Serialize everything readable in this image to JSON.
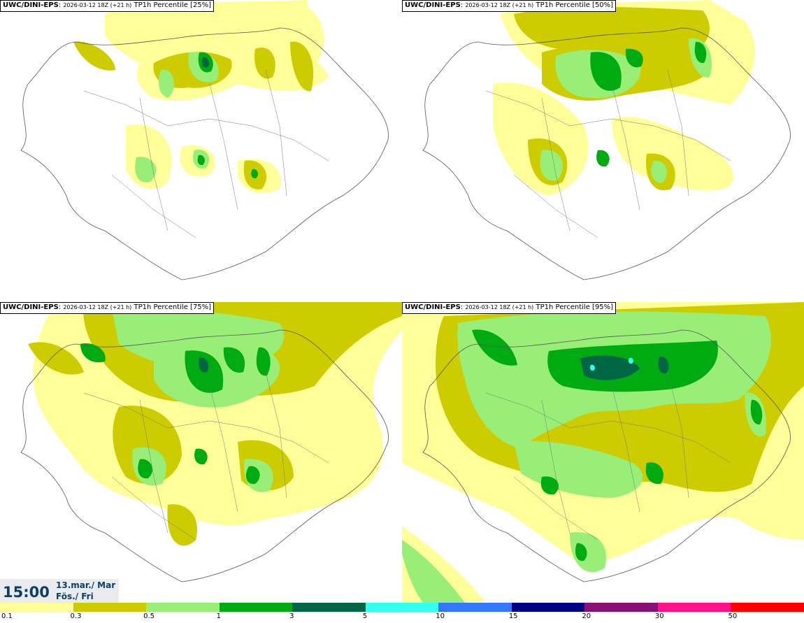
{
  "model": "UWC/DINI-EPS",
  "run": "2026-03-12 18Z (+21 h)",
  "variable": "TP1h Percentile",
  "panels": [
    {
      "percentile": "[25%]"
    },
    {
      "percentile": "[50%]"
    },
    {
      "percentile": "[75%]"
    },
    {
      "percentile": "[95%]"
    }
  ],
  "valid_time": {
    "hour": "15:00",
    "date": "13.mar./ Mar",
    "weekday": "Fös./ Fri"
  },
  "colorbar": {
    "levels": [
      "0.1",
      "0.3",
      "0.5",
      "1",
      "3",
      "5",
      "10",
      "15",
      "20",
      "30",
      "50"
    ],
    "colors": [
      "#ffff99",
      "#cccc00",
      "#99ee77",
      "#00aa11",
      "#006644",
      "#33ffee",
      "#3377ff",
      "#000088",
      "#881177",
      "#ff1188",
      "#ff0000"
    ]
  }
}
